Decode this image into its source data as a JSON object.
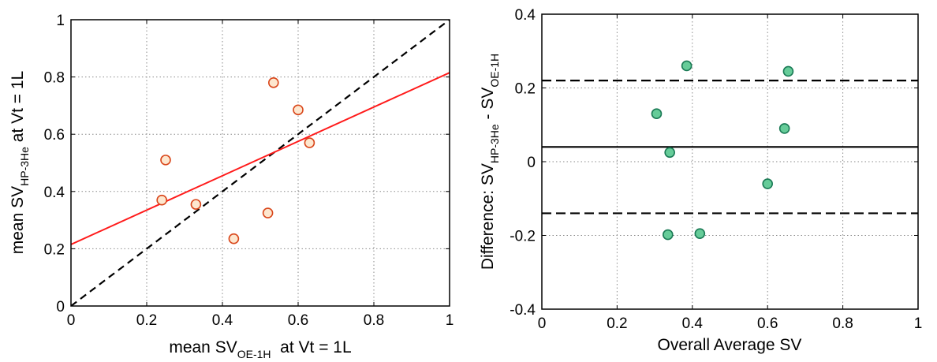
{
  "chart_data": [
    {
      "type": "scatter",
      "xlim": [
        0,
        1
      ],
      "ylim": [
        0,
        1
      ],
      "xticks": [
        "0",
        "0.2",
        "0.4",
        "0.6",
        "0.8",
        "1"
      ],
      "yticks": [
        "0",
        "0.2",
        "0.4",
        "0.6",
        "0.8",
        "1"
      ],
      "xlabel": {
        "pre": "mean SV",
        "sub": "OE-1H",
        "post": "  at Vt = 1L"
      },
      "ylabel": {
        "pre": "mean SV",
        "sub": "HP-3He",
        "post": " at Vt = 1L"
      },
      "grid": true,
      "points": [
        {
          "x": 0.24,
          "y": 0.37
        },
        {
          "x": 0.25,
          "y": 0.51
        },
        {
          "x": 0.33,
          "y": 0.355
        },
        {
          "x": 0.43,
          "y": 0.235
        },
        {
          "x": 0.52,
          "y": 0.325
        },
        {
          "x": 0.535,
          "y": 0.78
        },
        {
          "x": 0.6,
          "y": 0.685
        },
        {
          "x": 0.63,
          "y": 0.57
        }
      ],
      "marker_fill": "#fde7cf",
      "marker_edge": "#d9461a",
      "fit_line": {
        "x": [
          0,
          1
        ],
        "y": [
          0.215,
          0.815
        ],
        "color": "#ff1a1a"
      },
      "identity_line": {
        "x": [
          0,
          1
        ],
        "y": [
          0,
          1
        ],
        "color": "#000000",
        "dash": true
      }
    },
    {
      "type": "scatter",
      "xlim": [
        0,
        1
      ],
      "ylim": [
        -0.4,
        0.4
      ],
      "xticks": [
        "0",
        "0.2",
        "0.4",
        "0.6",
        "0.8",
        "1"
      ],
      "yticks": [
        "-0.4",
        "-0.2",
        "0",
        "0.2",
        "0.4"
      ],
      "xlabel": {
        "pre": "Overall Average SV",
        "sub": "",
        "post": ""
      },
      "ylabel": {
        "pre": "Difference: SV",
        "sub": "HP-3He",
        "mid": " - SV",
        "sub2": "OE-1H"
      },
      "grid": true,
      "points": [
        {
          "x": 0.305,
          "y": 0.13
        },
        {
          "x": 0.335,
          "y": -0.198
        },
        {
          "x": 0.34,
          "y": 0.025
        },
        {
          "x": 0.385,
          "y": 0.26
        },
        {
          "x": 0.42,
          "y": -0.195
        },
        {
          "x": 0.6,
          "y": -0.06
        },
        {
          "x": 0.645,
          "y": 0.09
        },
        {
          "x": 0.655,
          "y": 0.245
        }
      ],
      "marker_fill": "#66cc99",
      "marker_edge": "#1a7a55",
      "mean_line": {
        "y": 0.04,
        "color": "#000000"
      },
      "limit_lines": {
        "y": [
          0.22,
          -0.14
        ],
        "color": "#000000",
        "dash": true
      }
    }
  ]
}
